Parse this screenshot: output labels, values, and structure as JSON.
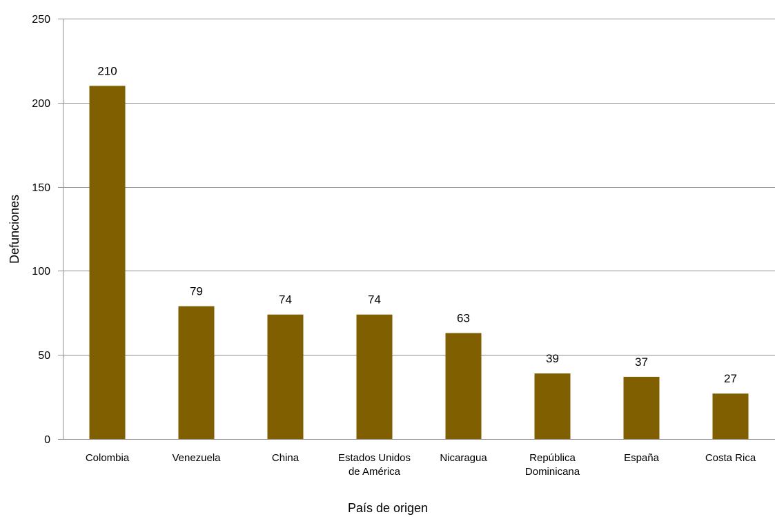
{
  "chart_data": {
    "type": "bar",
    "title": "",
    "xlabel": "País de origen",
    "ylabel": "Defunciones",
    "ylim": [
      0,
      250
    ],
    "yticks": [
      0,
      50,
      100,
      150,
      200,
      250
    ],
    "grid": true,
    "legend": "none",
    "bar_color": "#7f5f00",
    "categories": [
      [
        "Colombia"
      ],
      [
        "Venezuela"
      ],
      [
        "China"
      ],
      [
        "Estados Unidos",
        "de América"
      ],
      [
        "Nicaragua"
      ],
      [
        "República",
        "Dominicana"
      ],
      [
        "España"
      ],
      [
        "Costa Rica"
      ]
    ],
    "values": [
      210,
      79,
      74,
      74,
      63,
      39,
      37,
      27
    ]
  }
}
